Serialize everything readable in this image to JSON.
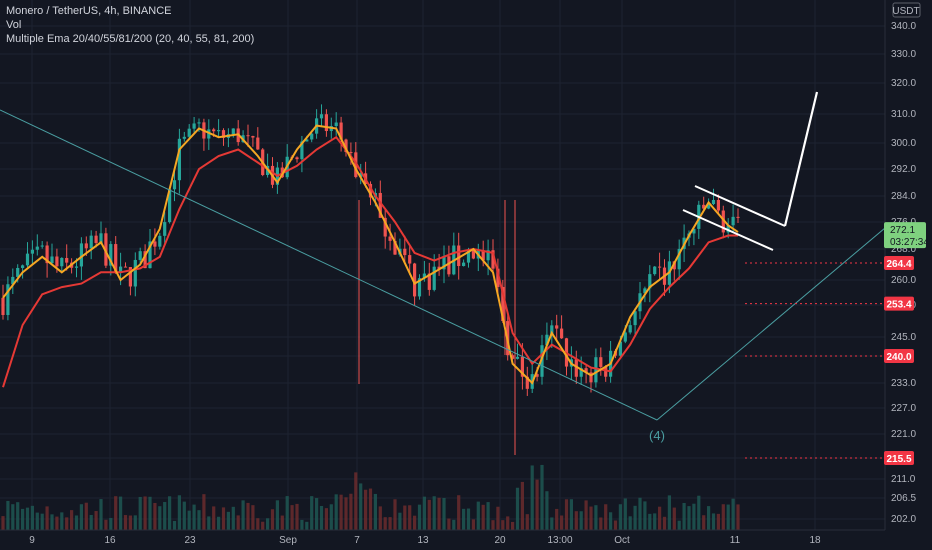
{
  "legend": {
    "title": "Monero / TetherUS, 4h, BINANCE",
    "vol": "Vol",
    "ema": "Multiple Ema 20/40/55/81/200 (20, 40, 55, 81, 200)"
  },
  "currency": "USDT",
  "colors": {
    "background": "#131722",
    "up": "#26a69a",
    "down": "#ef5350",
    "ema_fast": "#f5a623",
    "ema_slow": "#e53935",
    "trendline": "#4a9ea1",
    "projection": "#ffffff",
    "level": "#f23645",
    "current_price": "#7fd17f"
  },
  "chart_data": {
    "type": "candlestick",
    "y_ticks": [
      340.0,
      330.0,
      320.0,
      310.0,
      300.0,
      292.0,
      284.0,
      276.0,
      268.0,
      260.0,
      253.0,
      245.0,
      240.0,
      233.0,
      227.0,
      221.0,
      215.5,
      211.0,
      206.5,
      202.0
    ],
    "x_ticks": [
      "9",
      "16",
      "23",
      "Sep",
      "7",
      "13",
      "20",
      "13:00",
      "Oct",
      "11",
      "18"
    ],
    "current_price": {
      "value": "272.1",
      "countdown": "03:27:34",
      "y": 272.1
    },
    "levels": [
      {
        "label": "264.4",
        "y": 264.4
      },
      {
        "label": "253.4",
        "y": 253.4
      },
      {
        "label": "240.0",
        "y": 240.0
      },
      {
        "label": "215.5",
        "y": 215.5
      }
    ],
    "wave_label": "(4)",
    "ema_fast_points": [
      [
        0,
        255
      ],
      [
        4,
        262
      ],
      [
        8,
        266
      ],
      [
        12,
        262
      ],
      [
        16,
        266
      ],
      [
        20,
        270
      ],
      [
        24,
        260
      ],
      [
        28,
        264
      ],
      [
        32,
        274
      ],
      [
        36,
        298
      ],
      [
        40,
        305
      ],
      [
        44,
        302
      ],
      [
        48,
        303
      ],
      [
        52,
        296
      ],
      [
        56,
        288
      ],
      [
        60,
        298
      ],
      [
        64,
        306
      ],
      [
        68,
        305
      ],
      [
        72,
        292
      ],
      [
        76,
        282
      ],
      [
        80,
        270
      ],
      [
        84,
        259
      ],
      [
        88,
        262
      ],
      [
        92,
        265
      ],
      [
        96,
        268
      ],
      [
        100,
        262
      ],
      [
        104,
        238
      ],
      [
        108,
        233
      ],
      [
        112,
        246
      ],
      [
        116,
        238
      ],
      [
        120,
        235
      ],
      [
        124,
        238
      ],
      [
        128,
        250
      ],
      [
        132,
        258
      ],
      [
        136,
        262
      ],
      [
        140,
        272
      ],
      [
        144,
        282
      ],
      [
        148,
        275
      ],
      [
        150,
        273
      ]
    ],
    "ema_slow_points": [
      [
        0,
        232
      ],
      [
        4,
        248
      ],
      [
        8,
        256
      ],
      [
        12,
        258
      ],
      [
        16,
        259
      ],
      [
        20,
        262
      ],
      [
        24,
        262
      ],
      [
        28,
        263
      ],
      [
        32,
        266
      ],
      [
        36,
        280
      ],
      [
        40,
        292
      ],
      [
        44,
        296
      ],
      [
        48,
        298
      ],
      [
        52,
        294
      ],
      [
        56,
        290
      ],
      [
        60,
        293
      ],
      [
        64,
        298
      ],
      [
        68,
        302
      ],
      [
        72,
        294
      ],
      [
        76,
        284
      ],
      [
        80,
        276
      ],
      [
        84,
        267
      ],
      [
        88,
        265
      ],
      [
        92,
        267
      ],
      [
        96,
        268
      ],
      [
        100,
        267
      ],
      [
        104,
        246
      ],
      [
        108,
        238
      ],
      [
        112,
        243
      ],
      [
        116,
        240
      ],
      [
        120,
        237
      ],
      [
        124,
        236
      ],
      [
        128,
        243
      ],
      [
        132,
        252
      ],
      [
        136,
        258
      ],
      [
        140,
        263
      ],
      [
        144,
        270
      ],
      [
        148,
        272
      ],
      [
        150,
        272
      ]
    ]
  }
}
